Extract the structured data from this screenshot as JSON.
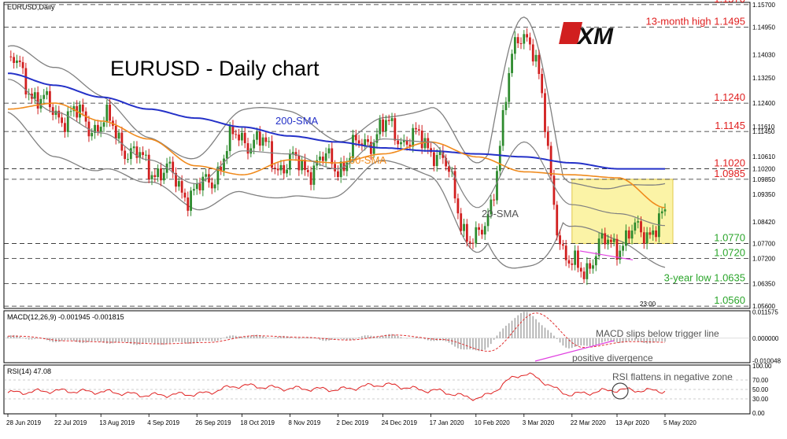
{
  "symbol_label": "EURUSD,Daily",
  "title": "EURUSD - Daily chart",
  "logo_text": "XM",
  "colors": {
    "up_candle": "#2e8b2e",
    "down_candle": "#d11f1f",
    "sma200": "#2431c8",
    "sma50": "#f08a1c",
    "bollinger": "#808080",
    "resistance_text": "#e02020",
    "support_text": "#2aa52a",
    "highlight_box": "#fbf3a6",
    "divergence_line": "#e040e0",
    "macd_signal": "#e03030",
    "macd_hist": "#a0a0a0",
    "rsi_line": "#e02020"
  },
  "chart_data": [
    {
      "type": "candlestick",
      "name": "main",
      "title": "EURUSD - Daily chart",
      "x_labels": [
        "28 Jun 2019",
        "22 Jul 2019",
        "13 Aug 2019",
        "4 Sep 2019",
        "26 Sep 2019",
        "18 Oct 2019",
        "8 Nov 2019",
        "2 Dec 2019",
        "24 Dec 2019",
        "17 Jan 2020",
        "10 Feb 2020",
        "3 Mar 2020",
        "22 Mar 2020",
        "13 Apr 2020",
        "5 May 2020"
      ],
      "y_ticks": [
        "1.15700",
        "1.14950",
        "1.14030",
        "1.13250",
        "1.12400",
        "1.11610",
        "1.11450",
        "1.10610",
        "1.10200",
        "1.09850",
        "1.09350",
        "1.08420",
        "1.07700",
        "1.07200",
        "1.06350",
        "1.05600"
      ],
      "ylim": [
        1.0555,
        1.1575
      ],
      "anchors": [
        {
          "x": "28 Jun 2019",
          "close": 1.137
        },
        {
          "x": "22 Jul 2019",
          "close": 1.121
        },
        {
          "x": "13 Aug 2019",
          "close": 1.117
        },
        {
          "x": "4 Sep 2019",
          "close": 1.103
        },
        {
          "x": "26 Sep 2019",
          "close": 1.094
        },
        {
          "x": "18 Oct 2019",
          "close": 1.113
        },
        {
          "x": "8 Nov 2019",
          "close": 1.103
        },
        {
          "x": "2 Dec 2019",
          "close": 1.104
        },
        {
          "x": "24 Dec 2019",
          "close": 1.115
        },
        {
          "x": "17 Jan 2020",
          "close": 1.11
        },
        {
          "x": "10 Feb 2020",
          "close": 1.077
        },
        {
          "x": "3 Mar 2020",
          "close": 1.149
        },
        {
          "x": "22 Mar 2020",
          "close": 1.068
        },
        {
          "x": "13 Apr 2020",
          "close": 1.078
        },
        {
          "x": "5 May 2020",
          "close": 1.084
        }
      ],
      "overlays": [
        {
          "name": "200-SMA",
          "values": [
            1.134,
            1.13,
            1.126,
            1.122,
            1.119,
            1.116,
            1.113,
            1.111,
            1.109,
            1.108,
            1.107,
            1.106,
            1.104,
            1.102,
            1.102
          ]
        },
        {
          "name": "50-SMA",
          "values": [
            1.122,
            1.124,
            1.118,
            1.112,
            1.103,
            1.1,
            1.105,
            1.104,
            1.107,
            1.111,
            1.106,
            1.101,
            1.1,
            1.099,
            1.089
          ]
        },
        {
          "name": "20-SMA",
          "values": [
            1.132,
            1.121,
            1.114,
            1.105,
            1.097,
            1.108,
            1.107,
            1.102,
            1.112,
            1.111,
            1.089,
            1.111,
            1.09,
            1.087,
            1.083
          ]
        }
      ],
      "levels": [
        {
          "value": 1.157,
          "label": "1.1570",
          "kind": "resistance"
        },
        {
          "value": 1.1495,
          "label": "13-month high 1.1495",
          "kind": "resistance"
        },
        {
          "value": 1.124,
          "label": "1.1240",
          "kind": "resistance"
        },
        {
          "value": 1.1145,
          "label": "1.1145",
          "kind": "resistance"
        },
        {
          "value": 1.102,
          "label": "1.1020",
          "kind": "resistance"
        },
        {
          "value": 1.0985,
          "label": "1.0985",
          "kind": "resistance"
        },
        {
          "value": 1.077,
          "label": "1.0770",
          "kind": "support"
        },
        {
          "value": 1.072,
          "label": "1.0720",
          "kind": "support"
        },
        {
          "value": 1.0635,
          "label": "3-year low 1.0635",
          "kind": "support"
        },
        {
          "value": 1.056,
          "label": "1.0560",
          "kind": "support"
        }
      ],
      "annotations": [
        {
          "text": "200-SMA"
        },
        {
          "text": "50-SMA"
        },
        {
          "text": "20-SMA"
        }
      ],
      "highlight_range": {
        "from": "22 Mar 2020",
        "to": "5 May 2020",
        "ymin": 1.077,
        "ymax": 1.0985
      }
    },
    {
      "type": "line",
      "name": "MACD",
      "label": "MACD(12,26,9) -0.001945 -0.001815",
      "y_ticks": [
        "0.011575",
        "0.000000",
        "-0.010048"
      ],
      "ylim": [
        -0.0105,
        0.0118
      ],
      "values": [
        0.0009,
        -0.0012,
        -0.0018,
        -0.0025,
        -0.0019,
        0.0011,
        0.0004,
        -0.0008,
        0.0014,
        -0.0006,
        -0.0058,
        0.0112,
        -0.0041,
        -0.0015,
        -0.0019
      ],
      "annotations": [
        {
          "text": "MACD slips below trigger line"
        },
        {
          "text": "positive divergence"
        }
      ]
    },
    {
      "type": "line",
      "name": "RSI",
      "label": "RSI(14) 47.08",
      "y_ticks": [
        "100.00",
        "70.00",
        "50.00",
        "30.00",
        "0.00"
      ],
      "ylim": [
        0,
        100
      ],
      "values": [
        43,
        47,
        45,
        38,
        40,
        58,
        52,
        50,
        60,
        48,
        32,
        82,
        40,
        49,
        47
      ],
      "annotations": [
        {
          "text": "RSI flattens in negative zone"
        }
      ]
    }
  ],
  "time_stamp": "23:00"
}
